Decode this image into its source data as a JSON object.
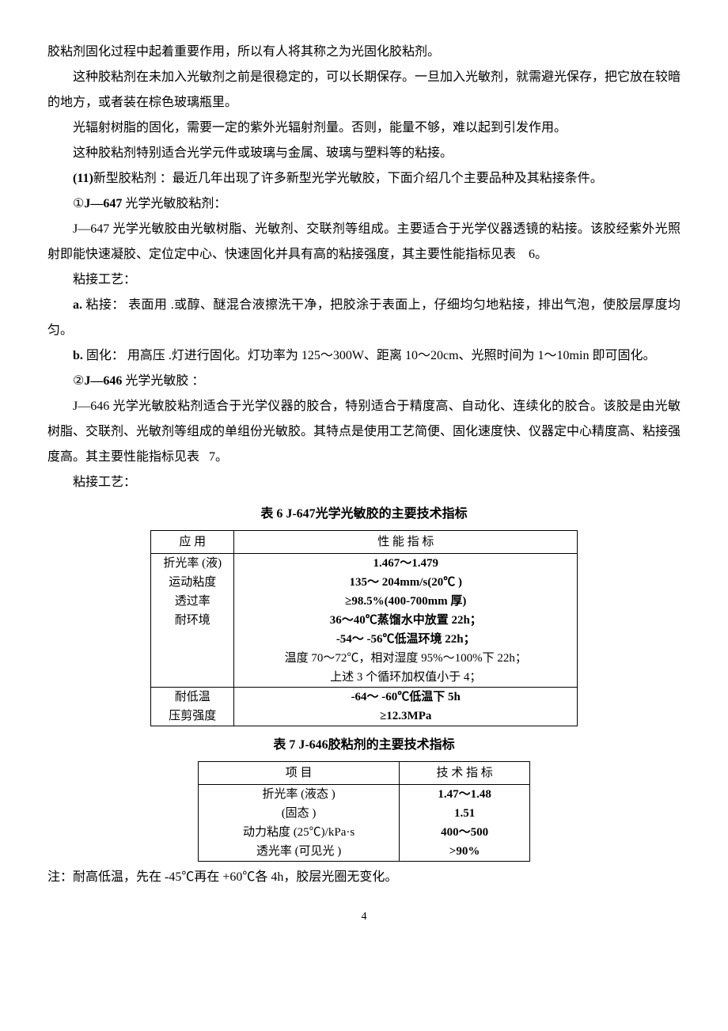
{
  "paragraphs": {
    "p1": "胶粘剂固化过程中起着重要作用，所以有人将其称之为光固化胶粘剂。",
    "p2": "这种胶粘剂在未加入光敏剂之前是很稳定的，可以长期保存。一旦加入光敏剂，就需避光保存，把它放在较暗的地方，或者装在棕色玻璃瓶里。",
    "p3": "光辐射树脂的固化，需要一定的紫外光辐射剂量。否则，能量不够，难以起到引发作用。",
    "p4": "这种胶粘剂特别适合光学元件或玻璃与金属、玻璃与塑料等的粘接。",
    "p5_prefix": "(11)",
    "p5_rest": "新型胶粘剂 ：最近几年出现了许多新型光学光敏胶，下面介绍几个主要品种及其粘接条件。",
    "p6_prefix": "①J—647",
    "p6_rest": " 光学光敏胶粘剂：",
    "p7a": "J—647 光学光敏胶由光敏树脂、光敏剂、交联剂等组成。主要适合于光学仪器透镜的粘接。该胶经紫外光照射即能快速凝胶、定位定中心、快速固化并具有高的粘接强度，其主要性能指标见表",
    "p7b": "6",
    "p7c": "。",
    "p8": "粘接工艺：",
    "p9_prefix": "a.",
    "p9_mid": " 粘接： 表面用 .或醇、醚混合液擦洗干净，把胶涂于表面上，仔细均匀地粘接，排出气泡，使胶层厚度均匀。",
    "p10_prefix": "b.",
    "p10_rest": " 固化： 用高压 .灯进行固化。灯功率为  125～300W、距离  10～20cm、光照时间为  1～10min 即可固化。",
    "p11_prefix": "②J—646",
    "p11_rest": " 光学光敏胶 ：",
    "p12a": "J—646 光学光敏胶粘剂适合于光学仪器的胶合，特别适合于精度高、自动化、连续化的胶合。该胶是由光敏树脂、交联剂、光敏剂等组成的单组份光敏胶。其特点是使用工艺简便、固化速度快、仪器定中心精度高、粘接强度高。其主要性能指标见表",
    "p12b": "7",
    "p12c": "。",
    "p13": "粘接工艺："
  },
  "table6": {
    "title": "表 6   J-647光学光敏胶的主要技术指标",
    "header1": "应   用",
    "header2": "性 能 指 标",
    "rows": [
      {
        "app": "折光率 (液)",
        "val": "1.467～1.479"
      },
      {
        "app": "运动粘度",
        "val": "135～ 204mm/s(20℃ )"
      },
      {
        "app": "透过率",
        "val": "≥98.5%(400-700mm 厚)"
      }
    ],
    "env_label": "耐环境",
    "env_lines": [
      "36～40℃蒸馏水中放置  22h；",
      "-54～ -56℃低温环境  22h；",
      "温度 70～72℃，相对湿度  95%～100%下 22h；",
      "上述 3 个循环加权值小于  4；"
    ],
    "rows2": [
      {
        "app": "耐低温",
        "val": "-64～ -60℃低温下  5h"
      },
      {
        "app": "压剪强度",
        "val": "≥12.3MPa"
      }
    ]
  },
  "table7": {
    "title": "表 7   J-646胶粘剂的主要技术指标",
    "header1": "项    目",
    "header2": "技 术 指 标",
    "rows": [
      {
        "item": "折光率 (液态 )",
        "val": "1.47～1.48"
      },
      {
        "item": "(固态 )",
        "val": "1.51"
      },
      {
        "item": "动力粘度 (25℃)/kPa·s",
        "val": "400～500"
      },
      {
        "item": "透光率 (可见光 )",
        "val": ">90%"
      }
    ]
  },
  "footnote": "注：耐高低温，先在  -45℃再在 +60℃各 4h，胶层光圈无变化。",
  "page_number": "4"
}
